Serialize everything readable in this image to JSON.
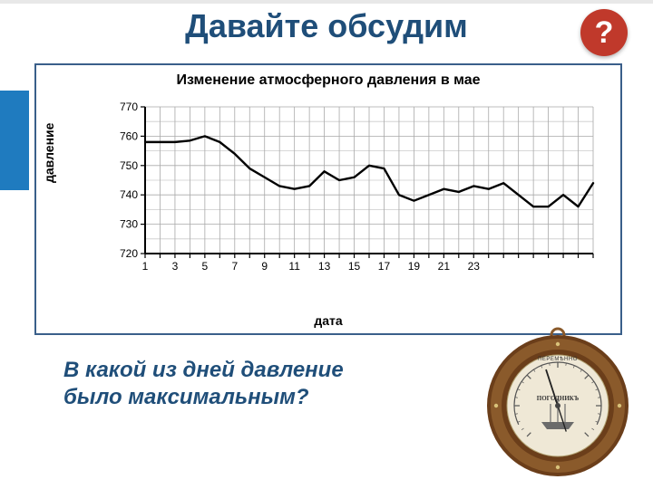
{
  "colors": {
    "top_bar": "#e8e8e8",
    "side_accent": "#1f7bbf",
    "title_color": "#1f4e79",
    "q_badge_bg": "#c0392b",
    "q_badge_text": "#ffffff",
    "chart_border": "#3a5f8a",
    "chart_title_color": "#000000",
    "grid_color": "#a9a9a9",
    "axis_color": "#000000",
    "line_color": "#000000",
    "label_color": "#000000",
    "question_color": "#1f4e79",
    "barometer_rim": "#6b3e1a",
    "barometer_rim_inner": "#8a5a2b",
    "barometer_face": "#efe8d6",
    "barometer_pin": "#444444"
  },
  "title": "Давайте обсудим",
  "q_badge": "?",
  "chart": {
    "title": "Изменение атмосферного давления в мае",
    "ylabel": "давление",
    "xlabel": "дата",
    "type": "line",
    "ylim": [
      720,
      770
    ],
    "ytick_step": 10,
    "y_ticks": [
      720,
      730,
      740,
      750,
      760,
      770
    ],
    "x_days": [
      1,
      2,
      3,
      4,
      5,
      6,
      7,
      8,
      9,
      10,
      11,
      12,
      13,
      14,
      15,
      16,
      17,
      18,
      19,
      20,
      21,
      22,
      23,
      24,
      25,
      26,
      27,
      28,
      29,
      30,
      31
    ],
    "x_tick_labels": [
      1,
      3,
      5,
      7,
      9,
      11,
      13,
      15,
      17,
      19,
      21,
      23
    ],
    "line_width": 2.4,
    "axis_width": 2,
    "grid_width": 0.8,
    "tick_fontsize": 12,
    "label_fontsize": 14,
    "title_fontsize": 16,
    "series": [
      {
        "x": 1,
        "y": 758
      },
      {
        "x": 2,
        "y": 758
      },
      {
        "x": 3,
        "y": 758
      },
      {
        "x": 4,
        "y": 758.5
      },
      {
        "x": 5,
        "y": 760
      },
      {
        "x": 6,
        "y": 758
      },
      {
        "x": 7,
        "y": 754
      },
      {
        "x": 8,
        "y": 749
      },
      {
        "x": 9,
        "y": 746
      },
      {
        "x": 10,
        "y": 743
      },
      {
        "x": 11,
        "y": 742
      },
      {
        "x": 12,
        "y": 743
      },
      {
        "x": 13,
        "y": 748
      },
      {
        "x": 14,
        "y": 745
      },
      {
        "x": 15,
        "y": 746
      },
      {
        "x": 16,
        "y": 750
      },
      {
        "x": 17,
        "y": 749
      },
      {
        "x": 18,
        "y": 740
      },
      {
        "x": 19,
        "y": 738
      },
      {
        "x": 20,
        "y": 740
      },
      {
        "x": 21,
        "y": 742
      },
      {
        "x": 22,
        "y": 741
      },
      {
        "x": 23,
        "y": 743
      },
      {
        "x": 24,
        "y": 742
      },
      {
        "x": 25,
        "y": 744
      },
      {
        "x": 26,
        "y": 740
      },
      {
        "x": 27,
        "y": 736
      },
      {
        "x": 28,
        "y": 736
      },
      {
        "x": 29,
        "y": 740
      },
      {
        "x": 30,
        "y": 736
      },
      {
        "x": 31,
        "y": 744
      }
    ]
  },
  "question_line1": "В какой из дней давление",
  "question_line2": "было максимальным?",
  "barometer": {
    "brand": "ПОГОДНИКЪ",
    "top_label": "ПЕРЕМѢННО"
  }
}
